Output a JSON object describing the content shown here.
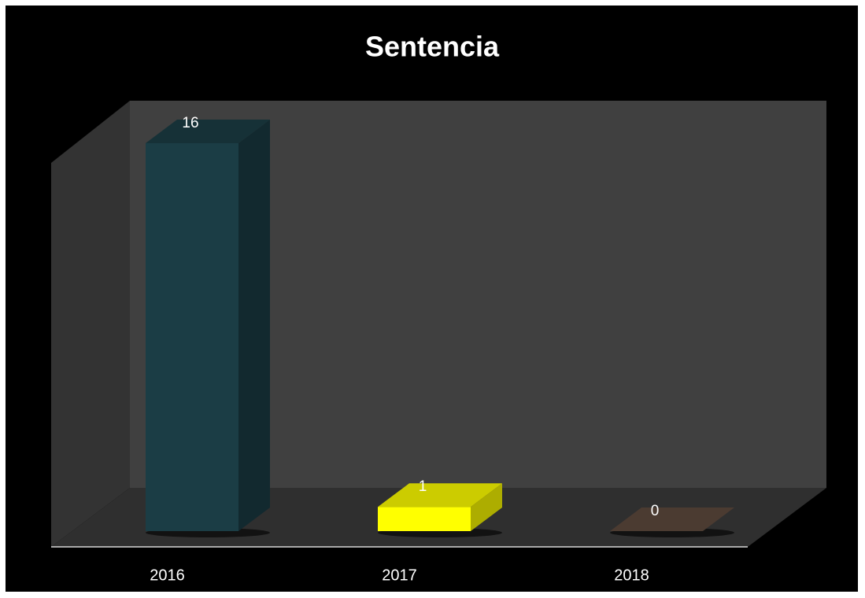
{
  "chart_data": {
    "type": "bar",
    "title": "Sentencia",
    "categories": [
      "2016",
      "2017",
      "2018"
    ],
    "values": [
      16,
      1,
      0
    ],
    "colors": [
      "#1b3d45",
      "#ffff00",
      "#4b3b31"
    ]
  }
}
